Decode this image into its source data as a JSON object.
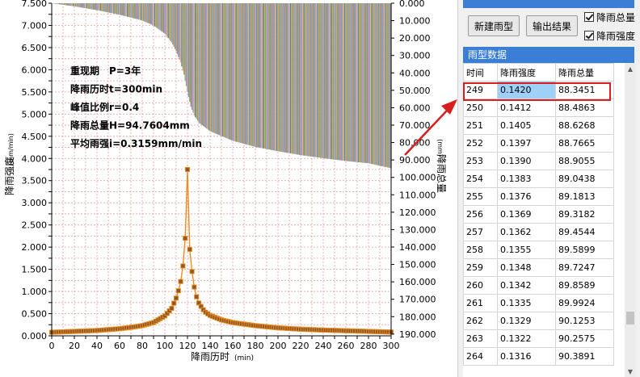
{
  "chart_data": {
    "type": "combo-bar-line",
    "x_label": "降雨历时",
    "x_unit": "(min)",
    "y_left_label": "降雨强度",
    "y_left_unit": "(mm/min)",
    "y_right_label": "降雨总量",
    "y_right_unit": "(mm)",
    "x_range": [
      0,
      300
    ],
    "y_left_range": [
      0,
      7.5
    ],
    "y_right_range": [
      0,
      190
    ],
    "y_right_inverted": true,
    "grid": true,
    "x_ticks": [
      "0",
      "10",
      "20",
      "30",
      "40",
      "50",
      "60",
      "70",
      "80",
      "90",
      "100",
      "110",
      "120",
      "130",
      "140",
      "150",
      "160",
      "170",
      "180",
      "190",
      "200",
      "210",
      "220",
      "230",
      "240",
      "250",
      "260",
      "270",
      "280",
      "290",
      "300"
    ],
    "y_left_ticks": [
      "0.000",
      "0.250",
      "0.500",
      "0.750",
      "1.000",
      "1.250",
      "1.500",
      "1.750",
      "2.000",
      "2.250",
      "2.500",
      "2.750",
      "3.000",
      "3.250",
      "3.500",
      "3.750",
      "4.000",
      "4.250",
      "4.500",
      "4.750",
      "5.000",
      "5.250",
      "5.500",
      "5.750",
      "6.000",
      "6.250",
      "6.500",
      "6.750",
      "7.000",
      "7.250",
      "7.500"
    ],
    "y_right_ticks": [
      "0.000",
      "10.000",
      "20.000",
      "30.000",
      "40.000",
      "50.000",
      "60.000",
      "70.000",
      "80.000",
      "90.000",
      "100.000",
      "110.000",
      "120.000",
      "130.000",
      "140.000",
      "150.000",
      "160.000",
      "170.000",
      "180.000",
      "190.000"
    ],
    "info_lines": [
      "重现期　P=3年",
      "降雨历时t=300min",
      "峰值比例r=0.4",
      "降雨总量H=94.7604mm",
      "平均雨强i=0.3159mm/min"
    ],
    "intensity_series": {
      "peak_x": 120,
      "peak_value": 3.75,
      "step": 2,
      "points": [
        [
          0,
          0.08
        ],
        [
          10,
          0.09
        ],
        [
          20,
          0.1
        ],
        [
          30,
          0.11
        ],
        [
          40,
          0.12
        ],
        [
          50,
          0.14
        ],
        [
          60,
          0.16
        ],
        [
          70,
          0.19
        ],
        [
          80,
          0.23
        ],
        [
          90,
          0.3
        ],
        [
          100,
          0.45
        ],
        [
          106,
          0.62
        ],
        [
          110,
          0.85
        ],
        [
          113,
          1.1
        ],
        [
          115,
          1.35
        ],
        [
          117,
          1.8
        ],
        [
          118,
          2.2
        ],
        [
          119,
          2.9
        ],
        [
          120,
          3.75
        ],
        [
          121,
          2.55
        ],
        [
          122,
          1.95
        ],
        [
          124,
          1.45
        ],
        [
          126,
          1.1
        ],
        [
          128,
          0.88
        ],
        [
          130,
          0.74
        ],
        [
          135,
          0.55
        ],
        [
          140,
          0.46
        ],
        [
          150,
          0.36
        ],
        [
          160,
          0.3
        ],
        [
          180,
          0.23
        ],
        [
          200,
          0.18
        ],
        [
          220,
          0.15
        ],
        [
          240,
          0.13
        ],
        [
          260,
          0.115
        ],
        [
          280,
          0.1
        ],
        [
          300,
          0.085
        ]
      ]
    },
    "cumulative_series": {
      "points": [
        [
          0,
          0
        ],
        [
          20,
          1.8
        ],
        [
          40,
          4.0
        ],
        [
          60,
          6.6
        ],
        [
          80,
          9.9
        ],
        [
          90,
          12.8
        ],
        [
          100,
          17.5
        ],
        [
          106,
          22.5
        ],
        [
          110,
          27.5
        ],
        [
          114,
          34.0
        ],
        [
          117,
          41.0
        ],
        [
          120,
          51.0
        ],
        [
          123,
          59.5
        ],
        [
          126,
          64.5
        ],
        [
          130,
          68.5
        ],
        [
          140,
          73.5
        ],
        [
          160,
          79.0
        ],
        [
          180,
          82.5
        ],
        [
          200,
          85.0
        ],
        [
          220,
          87.2
        ],
        [
          240,
          89.0
        ],
        [
          260,
          90.6
        ],
        [
          280,
          91.9
        ],
        [
          300,
          94.7604
        ]
      ],
      "bar_colors": [
        "#c9a24a",
        "#7a8fc4",
        "#8fa870",
        "#c77a7a",
        "#6aa7b8",
        "#b98bc2",
        "#d7b86a",
        "#5f7fa3",
        "#a3b56b",
        "#c48a5a",
        "#7fb3a0",
        "#9a8fc9"
      ]
    }
  },
  "panel": {
    "new_button": "新建雨型",
    "export_button": "输出结果",
    "check_total": "降雨总量",
    "check_intensity": "降雨强度",
    "group_title": "雨型数据",
    "columns": [
      "时间",
      "降雨强度",
      "降雨总量"
    ],
    "rows": [
      [
        "249",
        "0.1420",
        "88.3451"
      ],
      [
        "250",
        "0.1412",
        "88.4863"
      ],
      [
        "251",
        "0.1405",
        "88.6268"
      ],
      [
        "252",
        "0.1397",
        "88.7665"
      ],
      [
        "253",
        "0.1390",
        "88.9055"
      ],
      [
        "254",
        "0.1383",
        "89.0438"
      ],
      [
        "255",
        "0.1376",
        "89.1813"
      ],
      [
        "256",
        "0.1369",
        "89.3182"
      ],
      [
        "257",
        "0.1362",
        "89.4544"
      ],
      [
        "258",
        "0.1355",
        "89.5899"
      ],
      [
        "259",
        "0.1348",
        "89.7247"
      ],
      [
        "260",
        "0.1342",
        "89.8589"
      ],
      [
        "261",
        "0.1335",
        "89.9924"
      ],
      [
        "262",
        "0.1329",
        "90.1253"
      ],
      [
        "263",
        "0.1322",
        "90.2575"
      ],
      [
        "264",
        "0.1316",
        "90.3891"
      ]
    ],
    "selected_row": 0
  },
  "colors": {
    "accent": "#3a7fd5",
    "grid_line": "#e2a0a0",
    "intensity_line": "#f08c1e",
    "marker_fill": "#8c5a2a",
    "highlight": "#d81e1e",
    "selection": "#9fd0f7"
  }
}
